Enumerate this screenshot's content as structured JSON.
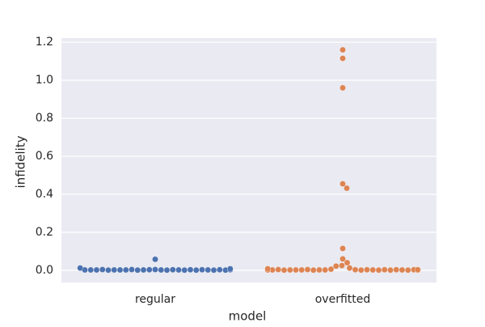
{
  "chart_data": {
    "type": "swarm",
    "x_label": "model",
    "y_label": "infidelity",
    "categories": [
      "regular",
      "overfitted"
    ],
    "colors": [
      "#4c72b0",
      "#dd8452"
    ],
    "values": [
      [
        0.058,
        0.004,
        0.002,
        0.003,
        0.001,
        0.002,
        0.003,
        0.001,
        0.002,
        0.004,
        0.001,
        0.002,
        0.003,
        0.002,
        0.001,
        0.002,
        0.003,
        0.001,
        0.002,
        0.004,
        0.001,
        0.002,
        0.003,
        0.002,
        0.001,
        0.002,
        0.003,
        0.012,
        0.008
      ],
      [
        1.16,
        1.115,
        0.96,
        0.455,
        0.432,
        0.115,
        0.06,
        0.04,
        0.025,
        0.022,
        0.012,
        0.006,
        0.003,
        0.002,
        0.001,
        0.002,
        0.003,
        0.001,
        0.002,
        0.004,
        0.001,
        0.002,
        0.003,
        0.002,
        0.001,
        0.002,
        0.003,
        0.001,
        0.002,
        0.004,
        0.001,
        0.002,
        0.003,
        0.002,
        0.001,
        0.002,
        0.003,
        0.008
      ]
    ],
    "ylim": [
      -0.064,
      1.222
    ],
    "yticks": [
      {
        "value": 0,
        "label": "0.0"
      },
      0.2,
      0.4,
      0.6,
      0.8,
      {
        "value": 1,
        "label": "1.0"
      },
      1.2
    ],
    "grid": true
  }
}
